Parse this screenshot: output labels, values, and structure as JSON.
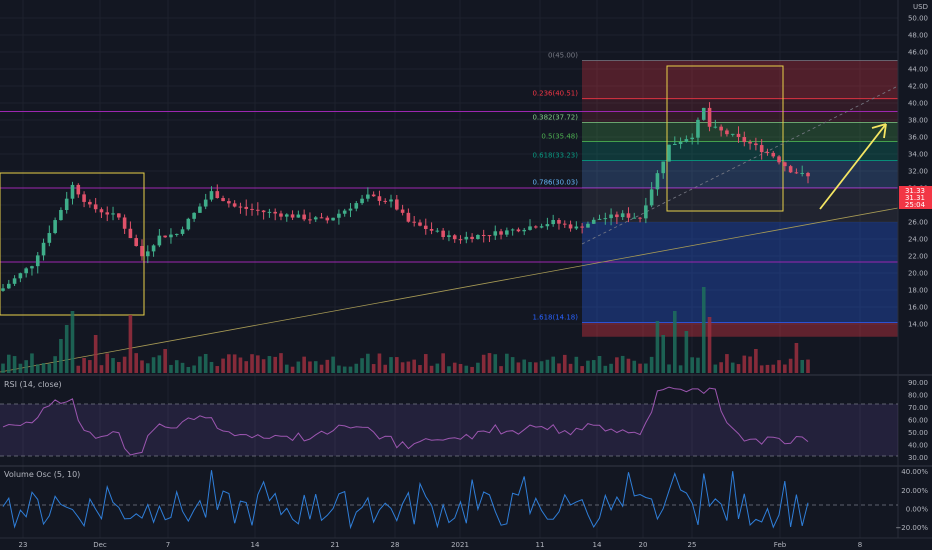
{
  "currency": "USD",
  "price_axis": {
    "ticks": [
      "50.00",
      "48.00",
      "46.00",
      "44.00",
      "42.00",
      "40.00",
      "38.00",
      "36.00",
      "34.00",
      "32.00",
      "30.00",
      "28.00",
      "26.00",
      "24.00",
      "22.00",
      "20.00",
      "18.00",
      "16.00",
      "14.00"
    ]
  },
  "price_badges": [
    {
      "text": "31.33",
      "value": 31.33,
      "color": "#f23645"
    },
    {
      "text": "31.31",
      "value": 31.31,
      "color": "#f23645"
    },
    {
      "text": "25:04",
      "value": 30.0,
      "color": "#f23645"
    }
  ],
  "fib_labels": [
    {
      "text": "0(45.00)",
      "level": 45.0,
      "color": "#787b86"
    },
    {
      "text": "0.236(40.51)",
      "level": 40.51,
      "color": "#f23645"
    },
    {
      "text": "0.382(37.72)",
      "level": 37.72,
      "color": "#81c784"
    },
    {
      "text": "0.5(35.48)",
      "level": 35.48,
      "color": "#4caf50"
    },
    {
      "text": "0.618(33.23)",
      "level": 33.23,
      "color": "#089981"
    },
    {
      "text": "0.786(30.03)",
      "level": 30.03,
      "color": "#64b5f6"
    },
    {
      "text": "1.618(14.18)",
      "level": 14.18,
      "color": "#2962ff"
    }
  ],
  "x_axis": {
    "labels": [
      "23",
      "Dec",
      "7",
      "14",
      "21",
      "28",
      "2021",
      "11",
      "14",
      "20",
      "25",
      "Feb",
      "8"
    ]
  },
  "rsi": {
    "title": "RSI (14, close)",
    "ticks": [
      "90.00",
      "80.00",
      "70.00",
      "60.00",
      "50.00",
      "40.00",
      "30.00"
    ],
    "upper": 70,
    "lower": 30,
    "ylim": [
      25,
      95
    ]
  },
  "volume_osc": {
    "title": "Volume Osc (5, 10)",
    "ticks": [
      "40.00%",
      "20.00%",
      "0.00%",
      "−20.00%"
    ],
    "ylim": [
      -30,
      45
    ]
  },
  "chart_data": {
    "type": "candlestick",
    "ylim": [
      12,
      52
    ],
    "candle_count": 140,
    "anchors": [
      {
        "i": 0,
        "price": 18.2
      },
      {
        "i": 5,
        "price": 21.0
      },
      {
        "i": 10,
        "price": 27.5
      },
      {
        "i": 12,
        "price": 30.3
      },
      {
        "i": 15,
        "price": 27.8
      },
      {
        "i": 20,
        "price": 26.5
      },
      {
        "i": 24,
        "price": 22.0
      },
      {
        "i": 27,
        "price": 24.3
      },
      {
        "i": 30,
        "price": 24.6
      },
      {
        "i": 33,
        "price": 27.0
      },
      {
        "i": 36,
        "price": 29.5
      },
      {
        "i": 40,
        "price": 27.8
      },
      {
        "i": 45,
        "price": 27.2
      },
      {
        "i": 52,
        "price": 26.5
      },
      {
        "i": 56,
        "price": 26.2
      },
      {
        "i": 60,
        "price": 27.8
      },
      {
        "i": 63,
        "price": 29.0
      },
      {
        "i": 67,
        "price": 28.4
      },
      {
        "i": 70,
        "price": 26.0
      },
      {
        "i": 74,
        "price": 25.0
      },
      {
        "i": 78,
        "price": 24.0
      },
      {
        "i": 82,
        "price": 24.4
      },
      {
        "i": 86,
        "price": 24.8
      },
      {
        "i": 92,
        "price": 25.6
      },
      {
        "i": 95,
        "price": 26.0
      },
      {
        "i": 99,
        "price": 25.3
      },
      {
        "i": 103,
        "price": 26.4
      },
      {
        "i": 107,
        "price": 26.8
      },
      {
        "i": 110,
        "price": 26.5
      },
      {
        "i": 112,
        "price": 30.0
      },
      {
        "i": 115,
        "price": 35.0
      },
      {
        "i": 119,
        "price": 36.2
      },
      {
        "i": 121,
        "price": 39.3
      },
      {
        "i": 122,
        "price": 37.2
      },
      {
        "i": 125,
        "price": 36.4
      },
      {
        "i": 129,
        "price": 35.2
      },
      {
        "i": 133,
        "price": 33.8
      },
      {
        "i": 136,
        "price": 32.1
      },
      {
        "i": 139,
        "price": 31.3
      }
    ],
    "horizontal_levels": [
      39.0,
      30.0,
      21.3
    ],
    "fib_box": {
      "top": 45.0,
      "bottom": 14.18
    },
    "projection_arrow": {
      "from": 30.0,
      "to": 39.0
    }
  }
}
